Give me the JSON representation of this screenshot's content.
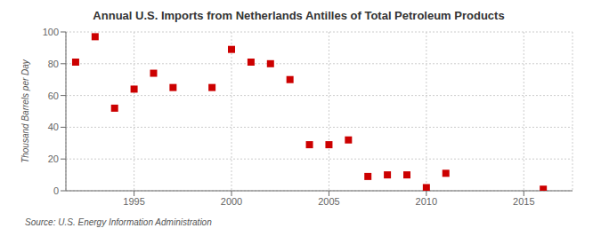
{
  "chart_data": {
    "type": "scatter",
    "title": "Annual U.S. Imports from Netherlands Antilles of Total Petroleum Products",
    "ylabel": "Thousand Barrels per Day",
    "annotation": "Source: U.S. Energy Information Administration",
    "x": [
      1992,
      1993,
      1994,
      1995,
      1996,
      1997,
      1999,
      2000,
      2001,
      2002,
      2003,
      2004,
      2005,
      2006,
      2007,
      2008,
      2009,
      2010,
      2011,
      2016
    ],
    "values": [
      81,
      97,
      52,
      64,
      74,
      65,
      65,
      89,
      81,
      80,
      70,
      29,
      29,
      32,
      9,
      10,
      10,
      2,
      11,
      1
    ],
    "color": "#cc0000",
    "marker": "square",
    "xlim": [
      1991.5,
      2017.5
    ],
    "xticks": [
      1995,
      2000,
      2005,
      2010,
      2015
    ],
    "ylim": [
      0,
      100
    ],
    "yticks": [
      0,
      20,
      40,
      60,
      80,
      100
    ],
    "grid": true
  }
}
